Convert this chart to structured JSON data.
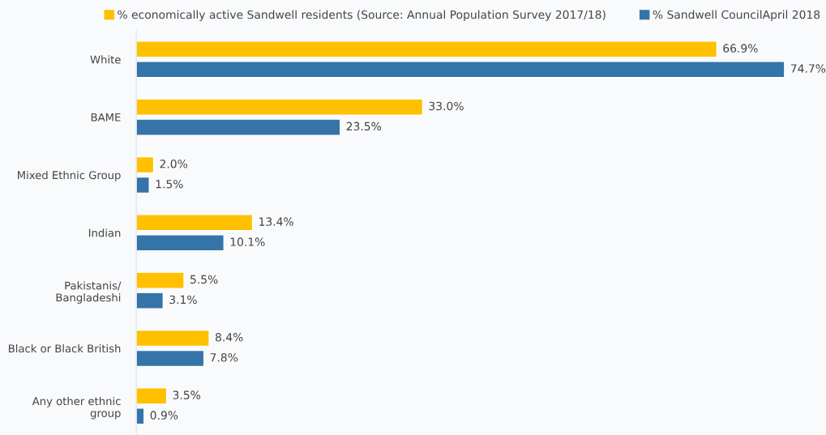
{
  "chart_data": {
    "type": "bar",
    "orientation": "horizontal",
    "categories": [
      "White",
      "BAME",
      "Mixed Ethnic Group",
      "Indian",
      "Pakistanis/\nBangladeshi",
      "Black or Black British",
      "Any other ethnic\ngroup"
    ],
    "series": [
      {
        "name": "% economically active Sandwell residents (Source: Annual Population Survey 2017/18)",
        "color": "#ffc000",
        "values": [
          66.9,
          33.0,
          2.0,
          13.4,
          5.5,
          8.4,
          3.5
        ],
        "value_labels": [
          "66.9%",
          "33.0%",
          "2.0%",
          "13.4%",
          "5.5%",
          "8.4%",
          "3.5%"
        ]
      },
      {
        "name": "% Sandwell CouncilApril 2018",
        "color": "#3574a8",
        "values": [
          74.7,
          23.5,
          1.5,
          10.1,
          3.1,
          7.8,
          0.9
        ],
        "value_labels": [
          "74.7%",
          "23.5%",
          "1.5%",
          "10.1%",
          "3.1%",
          "7.8%",
          "0.9%"
        ]
      }
    ],
    "xlim": [
      0,
      79
    ],
    "tick_labels": "y",
    "grid": false,
    "legend": "top"
  }
}
